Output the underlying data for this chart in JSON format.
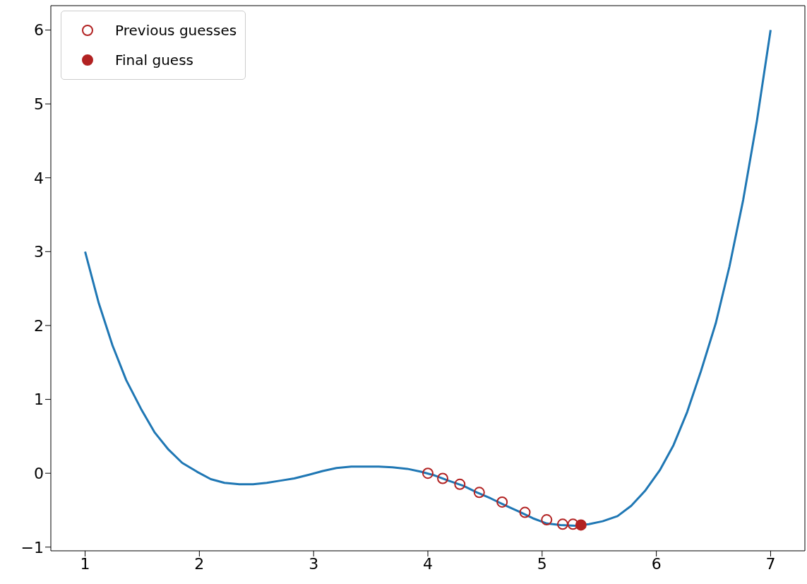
{
  "chart_data": {
    "type": "line",
    "xlim": [
      0.7,
      7.3
    ],
    "xticks": [
      1,
      2,
      3,
      4,
      5,
      6,
      7
    ],
    "ylim": [
      -1.05,
      6.33
    ],
    "yticks": [
      -1,
      0,
      1,
      2,
      3,
      4,
      5,
      6
    ],
    "grid": false,
    "legend": "top left",
    "line_style": "solid",
    "series": [
      {
        "color": "#1f77b4",
        "x": [
          1,
          1.12,
          1.24,
          1.36,
          1.49,
          1.61,
          1.73,
          1.85,
          1.98,
          2.1,
          2.22,
          2.35,
          2.47,
          2.59,
          2.71,
          2.83,
          2.96,
          3.08,
          3.2,
          3.33,
          3.45,
          3.57,
          3.69,
          3.82,
          3.94,
          4.06,
          4.18,
          4.31,
          4.43,
          4.55,
          4.67,
          4.8,
          4.92,
          5.04,
          5.16,
          5.29,
          5.41,
          5.53,
          5.66,
          5.78,
          5.9,
          6.03,
          6.15,
          6.27,
          6.39,
          6.52,
          6.64,
          6.76,
          6.88,
          7
        ],
        "values": [
          3.0,
          2.3,
          1.73,
          1.26,
          0.87,
          0.55,
          0.32,
          0.14,
          0.02,
          -0.08,
          -0.13,
          -0.15,
          -0.15,
          -0.13,
          -0.1,
          -0.07,
          -0.02,
          0.03,
          0.07,
          0.09,
          0.09,
          0.09,
          0.08,
          0.06,
          0.02,
          -0.03,
          -0.1,
          -0.17,
          -0.26,
          -0.34,
          -0.43,
          -0.52,
          -0.61,
          -0.68,
          -0.7,
          -0.71,
          -0.69,
          -0.65,
          -0.58,
          -0.44,
          -0.24,
          0.04,
          0.38,
          0.83,
          1.38,
          2.03,
          2.8,
          3.7,
          4.77,
          6.0
        ]
      },
      {
        "type": "scatter",
        "marker": "circle",
        "name": "Previous guesses",
        "color": "#b22222",
        "x": [
          4.0,
          4.13,
          4.28,
          4.45,
          4.65,
          4.85,
          5.04,
          5.18,
          5.27
        ],
        "values": [
          0.0,
          -0.07,
          -0.15,
          -0.26,
          -0.39,
          -0.53,
          -0.63,
          -0.69,
          -0.69
        ]
      },
      {
        "type": "scatter",
        "marker": "circle",
        "name": "Final guess",
        "color": "#b22222",
        "x": [
          5.34
        ],
        "values": [
          -0.7
        ]
      }
    ]
  }
}
